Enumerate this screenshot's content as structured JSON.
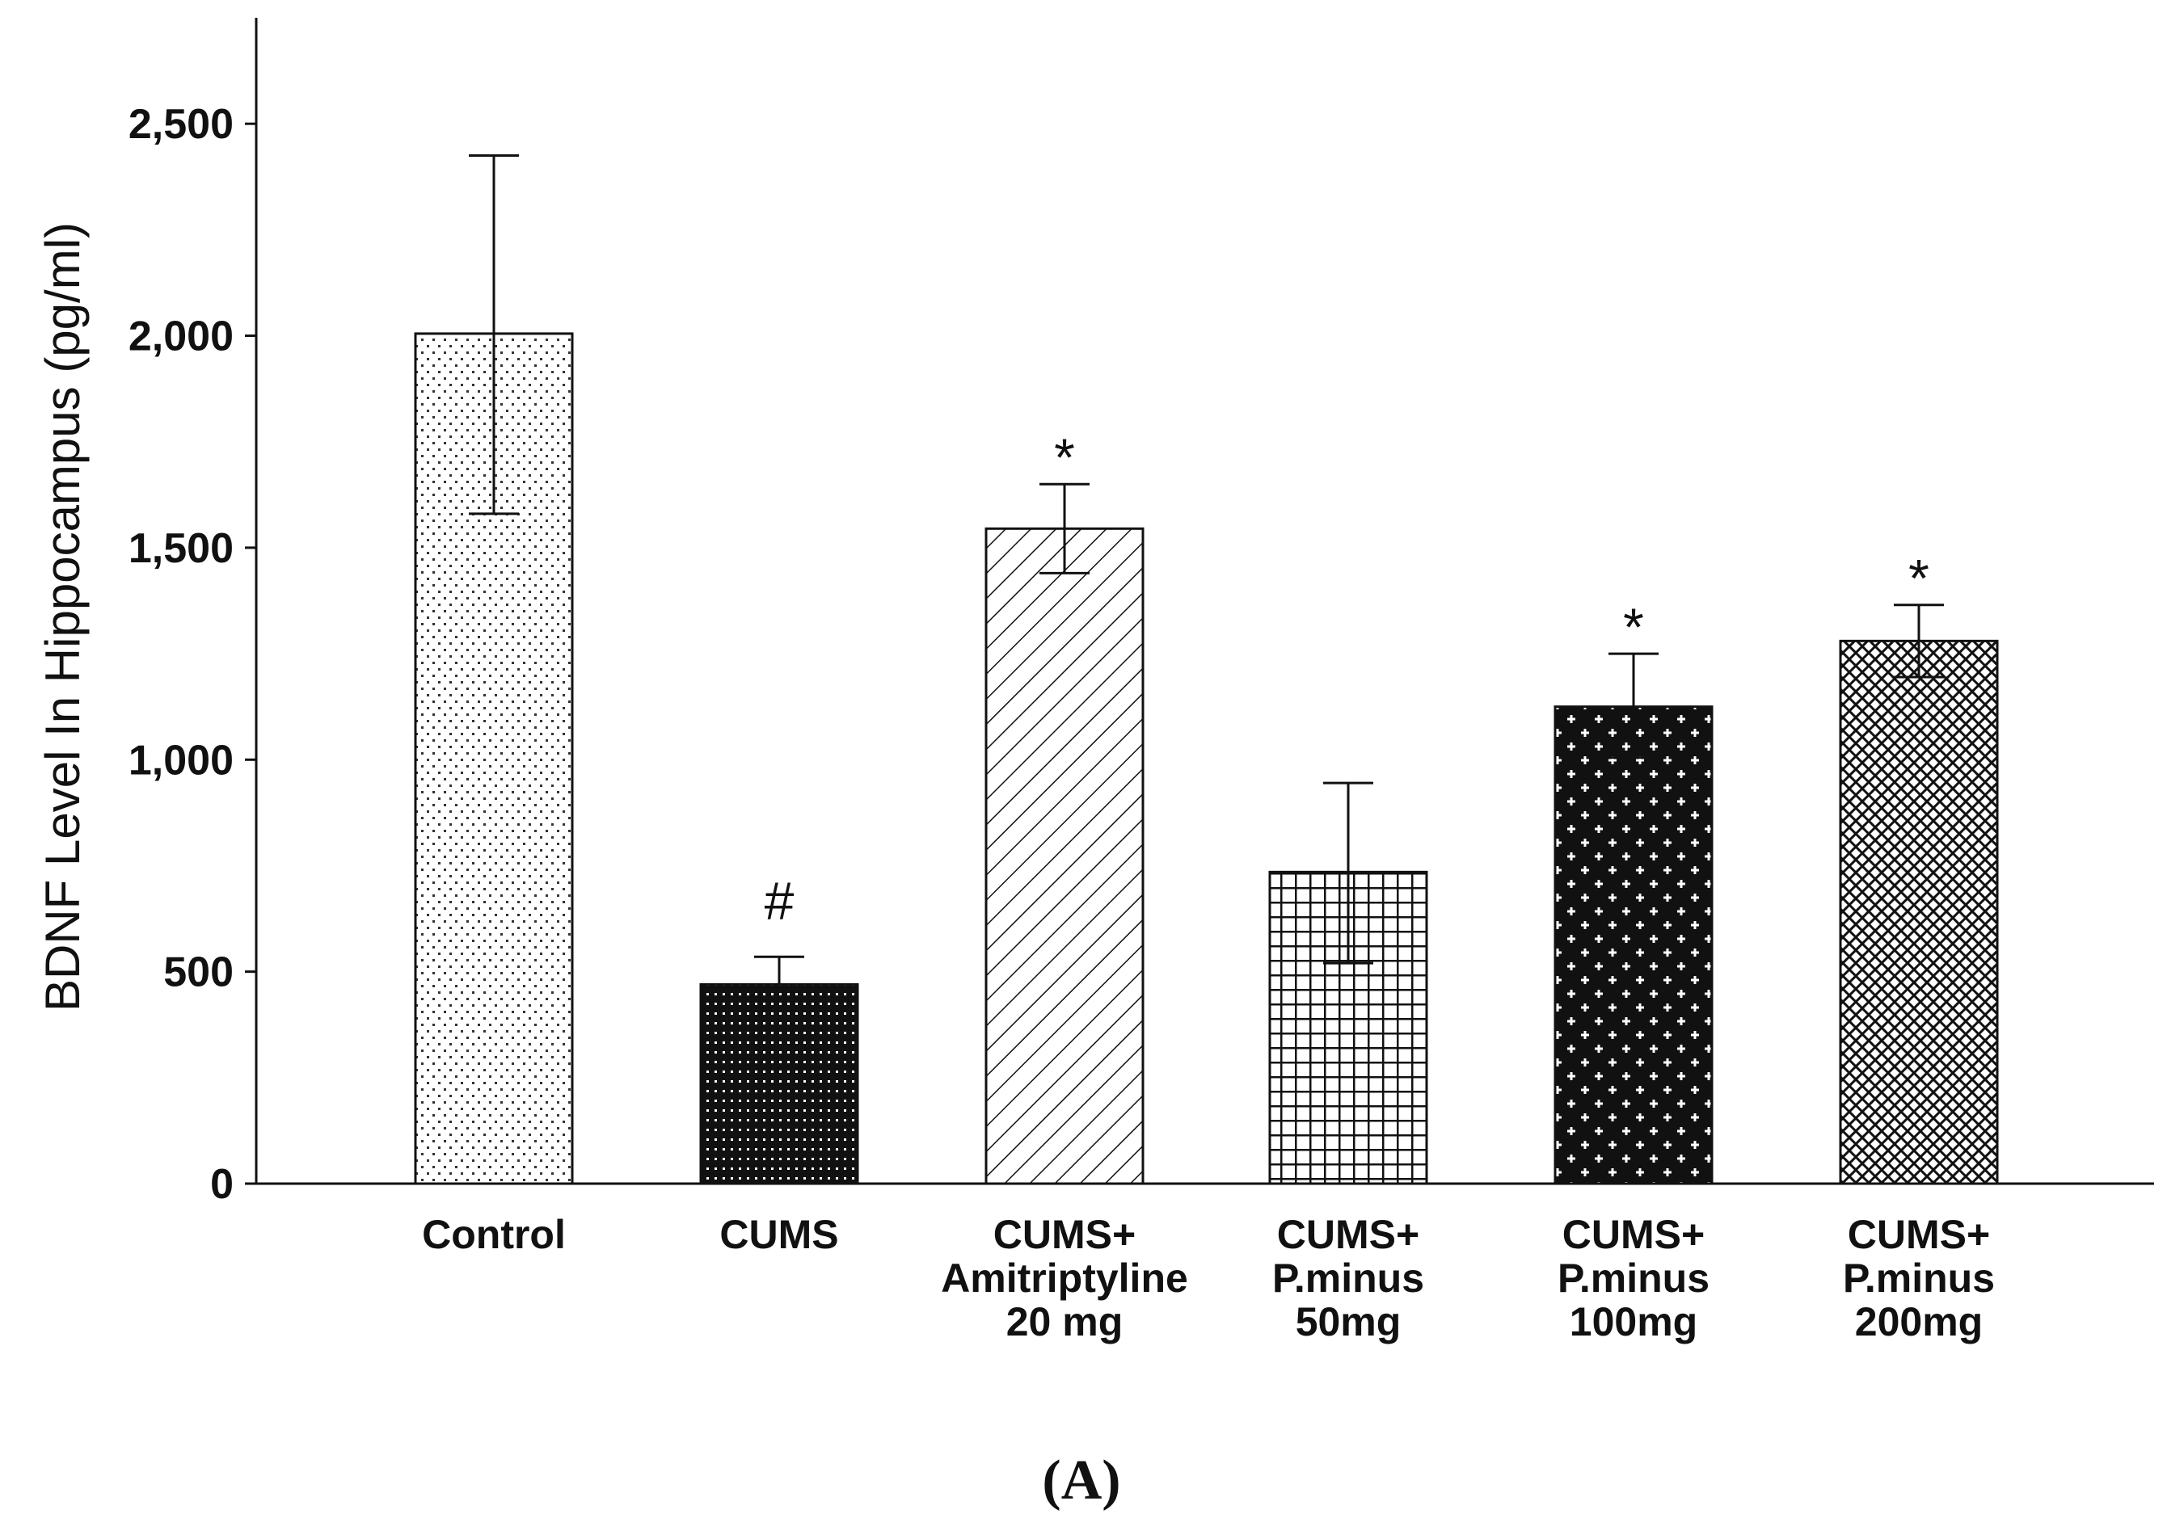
{
  "chart_data": {
    "type": "bar",
    "title": "",
    "xlabel": "",
    "ylabel": "BDNF Level In Hippocampus (pg/ml)",
    "ylim": [
      0,
      2750
    ],
    "yticks": [
      0,
      500,
      1000,
      1500,
      2000,
      2500
    ],
    "ytick_labels": [
      "0",
      "500",
      "1,000",
      "1,500",
      "2,000",
      "2,500"
    ],
    "grid": false,
    "categories": [
      [
        "Control"
      ],
      [
        "CUMS"
      ],
      [
        "CUMS+",
        "Amitriptyline",
        "20 mg"
      ],
      [
        "CUMS+",
        "P.minus",
        "50mg"
      ],
      [
        "CUMS+",
        "P.minus",
        "100mg"
      ],
      [
        "CUMS+",
        "P.minus",
        "200mg"
      ]
    ],
    "values": [
      2005,
      470,
      1545,
      735,
      1125,
      1280
    ],
    "error_upper": [
      2425,
      535,
      1650,
      945,
      1250,
      1365
    ],
    "error_lower": [
      1580,
      470,
      1440,
      520,
      1005,
      1195
    ],
    "annotations": [
      "",
      "#",
      "*",
      "",
      "*",
      "*"
    ],
    "patterns": [
      "sparse-dots",
      "dense-dark-dots",
      "diagonal-hatch",
      "grid",
      "plus-cross",
      "crosshatch"
    ],
    "panel_label": "(A)"
  },
  "colors": {
    "ink": "#111111",
    "background": "#ffffff"
  }
}
